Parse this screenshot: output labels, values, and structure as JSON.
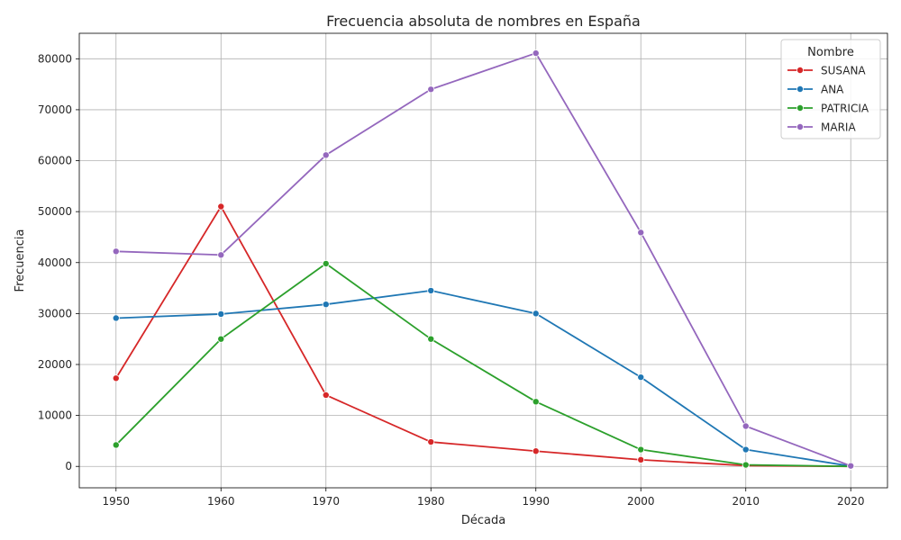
{
  "chart_data": {
    "type": "line",
    "title": "Frecuencia absoluta de nombres en España",
    "xlabel": "Década",
    "ylabel": "Frecuencia",
    "x": [
      1950,
      1960,
      1970,
      1980,
      1990,
      2000,
      2010,
      2020
    ],
    "xlim": [
      1946.5,
      2023.5
    ],
    "ylim": [
      -4200,
      85000
    ],
    "x_ticks": [
      1950,
      1960,
      1970,
      1980,
      1990,
      2000,
      2010,
      2020
    ],
    "y_ticks": [
      0,
      10000,
      20000,
      30000,
      40000,
      50000,
      60000,
      70000,
      80000
    ],
    "grid": true,
    "legend": {
      "title": "Nombre",
      "placement": "top-right"
    },
    "series": [
      {
        "name": "SUSANA",
        "color": "#d62728",
        "values": [
          17300,
          51000,
          14000,
          4800,
          3000,
          1300,
          150,
          0
        ]
      },
      {
        "name": "ANA",
        "color": "#1f77b4",
        "values": [
          29100,
          29900,
          31800,
          34500,
          30000,
          17500,
          3300,
          50
        ]
      },
      {
        "name": "PATRICIA",
        "color": "#2ca02c",
        "values": [
          4200,
          25000,
          39800,
          25000,
          12700,
          3300,
          300,
          0
        ]
      },
      {
        "name": "MARIA",
        "color": "#9467bd",
        "values": [
          42200,
          41500,
          61100,
          74000,
          81100,
          45900,
          7900,
          100
        ]
      }
    ]
  }
}
